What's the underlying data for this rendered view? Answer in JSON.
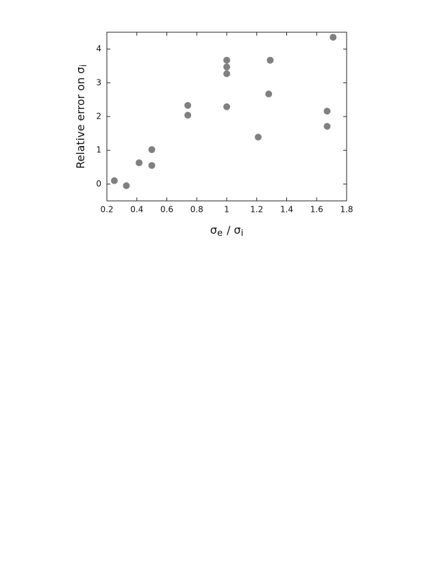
{
  "chart_data": {
    "type": "scatter",
    "x_label": [
      "σ",
      "e",
      "/  σ",
      "i"
    ],
    "y_label": [
      "Relative error on σ",
      "i"
    ],
    "color": "#808080",
    "x": [
      0.25,
      0.33,
      0.415,
      0.5,
      0.5,
      0.74,
      0.74,
      1.0,
      1.0,
      1.0,
      1.0,
      1.21,
      1.29,
      1.28,
      1.67,
      1.67,
      1.71
    ],
    "values": [
      0.1,
      -0.05,
      0.63,
      0.55,
      1.02,
      2.33,
      2.04,
      3.67,
      3.47,
      3.27,
      2.29,
      1.39,
      3.67,
      2.67,
      2.16,
      1.71,
      4.35
    ],
    "xlim": [
      0.2,
      1.8
    ],
    "xticks": [
      0.2,
      0.4,
      0.6,
      0.8,
      1,
      1.2,
      1.4,
      1.6,
      1.8
    ],
    "ylim": [
      -0.5,
      4.5
    ],
    "yticks": [
      0,
      1,
      2,
      3,
      4
    ]
  }
}
